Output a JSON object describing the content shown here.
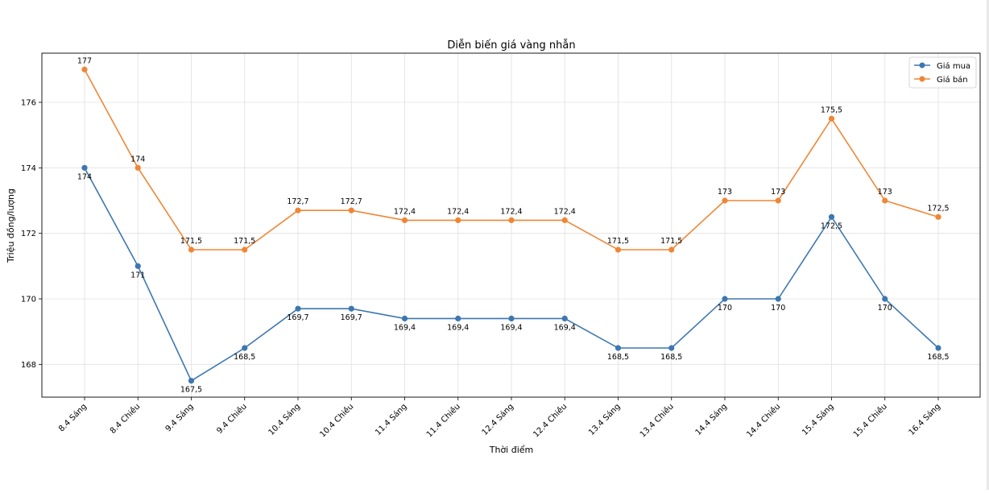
{
  "chart_data": {
    "type": "line",
    "title": "Diễn biến giá vàng nhẫn",
    "xlabel": "Thời điểm",
    "ylabel": "Triệu đồng/lượng",
    "categories": [
      "8.4 Sáng",
      "8.4 Chiều",
      "9.4 Sáng",
      "9.4 Chiều",
      "10.4 Sáng",
      "10.4 Chiều",
      "11.4 Sáng",
      "11.4 Chiều",
      "12.4 Sáng",
      "12.4 Chiều",
      "13.4 Sáng",
      "13.4 Chiều",
      "14.4 Sáng",
      "14.4 Chiều",
      "15.4 Sáng",
      "15.4 Chiều",
      "16.4 Sáng"
    ],
    "ylim": [
      167,
      177.5
    ],
    "yticks": [
      168,
      170,
      172,
      174,
      176
    ],
    "grid": true,
    "legend_position": "top-right",
    "series": [
      {
        "name": "Giá mua",
        "color": "#3d77b0",
        "values": [
          174,
          171,
          167.5,
          168.5,
          169.7,
          169.7,
          169.4,
          169.4,
          169.4,
          169.4,
          168.5,
          168.5,
          170,
          170,
          172.5,
          170,
          168.5
        ],
        "labels": [
          "174",
          "171",
          "167,5",
          "168,5",
          "169,7",
          "169,7",
          "169,4",
          "169,4",
          "169,4",
          "169,4",
          "168,5",
          "168,5",
          "170",
          "170",
          "172,5",
          "170",
          "168,5"
        ]
      },
      {
        "name": "Giá bán",
        "color": "#ef8636",
        "values": [
          177,
          174,
          171.5,
          171.5,
          172.7,
          172.7,
          172.4,
          172.4,
          172.4,
          172.4,
          171.5,
          171.5,
          173,
          173,
          175.5,
          173,
          172.5
        ],
        "labels": [
          "177",
          "174",
          "171,5",
          "171,5",
          "172,7",
          "172,7",
          "172,4",
          "172,4",
          "172,4",
          "172,4",
          "171,5",
          "171,5",
          "173",
          "173",
          "175,5",
          "173",
          "172,5"
        ]
      }
    ]
  }
}
